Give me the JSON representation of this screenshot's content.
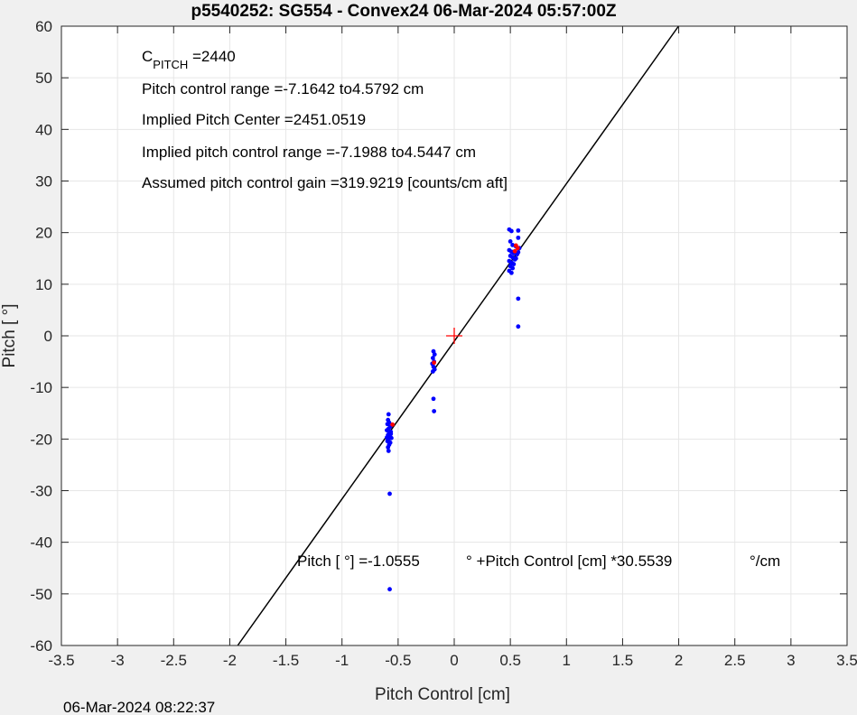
{
  "chart_data": {
    "type": "scatter",
    "title": "p5540252: SG554 - Convex24 06-Mar-2024 05:57:00Z",
    "xlabel": "Pitch Control [cm]",
    "ylabel": "Pitch [  °]",
    "xlim": [
      -3.5,
      3.5
    ],
    "ylim": [
      -60,
      60
    ],
    "xticks": [
      -3.5,
      -3,
      -2.5,
      -2,
      -1.5,
      -1,
      -0.5,
      0,
      0.5,
      1,
      1.5,
      2,
      2.5,
      3,
      3.5
    ],
    "yticks": [
      -60,
      -50,
      -40,
      -30,
      -20,
      -10,
      0,
      10,
      20,
      30,
      40,
      50,
      60
    ],
    "xtick_labels": [
      "-3.5",
      "-3",
      "-2.5",
      "-2",
      "-1.5",
      "-1",
      "-0.5",
      "0",
      "0.5",
      "1",
      "1.5",
      "2",
      "2.5",
      "3",
      "3.5"
    ],
    "ytick_labels": [
      "-60",
      "-50",
      "-40",
      "-30",
      "-20",
      "-10",
      "0",
      "10",
      "20",
      "30",
      "40",
      "50",
      "60"
    ],
    "grid": true,
    "colors": {
      "points": "#0000ff",
      "selected": "#ff0000",
      "fit": "#000000",
      "center": "#ff0000"
    },
    "fit_line": {
      "intercept": -1.0555,
      "slope": 30.5539
    },
    "center_marker": {
      "x": 0,
      "y": 0
    },
    "points": [
      {
        "x": -0.585,
        "y": -15.2
      },
      {
        "x": -0.59,
        "y": -16.3
      },
      {
        "x": -0.58,
        "y": -16.8
      },
      {
        "x": -0.595,
        "y": -17.1
      },
      {
        "x": -0.57,
        "y": -17.6
      },
      {
        "x": -0.585,
        "y": -18.0
      },
      {
        "x": -0.6,
        "y": -18.3
      },
      {
        "x": -0.565,
        "y": -18.6
      },
      {
        "x": -0.58,
        "y": -18.9
      },
      {
        "x": -0.59,
        "y": -19.2
      },
      {
        "x": -0.575,
        "y": -19.5
      },
      {
        "x": -0.56,
        "y": -19.8
      },
      {
        "x": -0.585,
        "y": -20.1
      },
      {
        "x": -0.595,
        "y": -20.4
      },
      {
        "x": -0.57,
        "y": -20.7
      },
      {
        "x": -0.58,
        "y": -21.1
      },
      {
        "x": -0.59,
        "y": -21.6
      },
      {
        "x": -0.585,
        "y": -22.3
      },
      {
        "x": -0.565,
        "y": -19.0
      },
      {
        "x": -0.6,
        "y": -19.7
      },
      {
        "x": -0.575,
        "y": -30.6
      },
      {
        "x": -0.575,
        "y": -49.1
      },
      {
        "x": -0.185,
        "y": -3.0
      },
      {
        "x": -0.175,
        "y": -3.6
      },
      {
        "x": -0.19,
        "y": -4.3
      },
      {
        "x": -0.18,
        "y": -5.0
      },
      {
        "x": -0.195,
        "y": -5.4
      },
      {
        "x": -0.185,
        "y": -6.0
      },
      {
        "x": -0.175,
        "y": -6.5
      },
      {
        "x": -0.19,
        "y": -6.9
      },
      {
        "x": -0.185,
        "y": -12.2
      },
      {
        "x": -0.18,
        "y": -14.6
      },
      {
        "x": 0.49,
        "y": 20.6
      },
      {
        "x": 0.51,
        "y": 20.3
      },
      {
        "x": 0.57,
        "y": 20.4
      },
      {
        "x": 0.57,
        "y": 19.0
      },
      {
        "x": 0.5,
        "y": 18.3
      },
      {
        "x": 0.52,
        "y": 17.6
      },
      {
        "x": 0.55,
        "y": 17.3
      },
      {
        "x": 0.58,
        "y": 17.0
      },
      {
        "x": 0.49,
        "y": 16.6
      },
      {
        "x": 0.51,
        "y": 16.3
      },
      {
        "x": 0.53,
        "y": 16.0
      },
      {
        "x": 0.56,
        "y": 15.8
      },
      {
        "x": 0.5,
        "y": 15.5
      },
      {
        "x": 0.52,
        "y": 15.2
      },
      {
        "x": 0.54,
        "y": 14.8
      },
      {
        "x": 0.49,
        "y": 14.5
      },
      {
        "x": 0.51,
        "y": 14.2
      },
      {
        "x": 0.53,
        "y": 13.9
      },
      {
        "x": 0.5,
        "y": 13.5
      },
      {
        "x": 0.52,
        "y": 13.1
      },
      {
        "x": 0.49,
        "y": 12.6
      },
      {
        "x": 0.51,
        "y": 12.2
      },
      {
        "x": 0.57,
        "y": 16.2
      },
      {
        "x": 0.55,
        "y": 15.0
      },
      {
        "x": 0.57,
        "y": 7.2
      },
      {
        "x": 0.57,
        "y": 1.8
      }
    ],
    "selected_points": [
      {
        "x": -0.55,
        "y": -17.2
      },
      {
        "x": -0.18,
        "y": -5.2
      },
      {
        "x": 0.55,
        "y": 17.5
      },
      {
        "x": 0.565,
        "y": 17.0
      },
      {
        "x": 0.54,
        "y": 16.4
      }
    ],
    "annotations": {
      "c_pitch_symbol": "C",
      "c_pitch_subscript": "PITCH",
      "c_pitch_value": " =2440",
      "range": "Pitch control range =-7.1642 to4.5792 cm",
      "center": "Implied Pitch Center =2451.0519",
      "implied_range": "Implied pitch control range =-7.1988 to4.5447 cm",
      "gain": "Assumed pitch control gain =319.9219 [counts/cm aft]",
      "fit_eq_part1": "Pitch [  °] =-1.0555",
      "fit_eq_part2": "° +Pitch Control [cm] *30.5539",
      "fit_eq_part3": "°/cm"
    },
    "timestamp": "06-Mar-2024 08:22:37"
  }
}
